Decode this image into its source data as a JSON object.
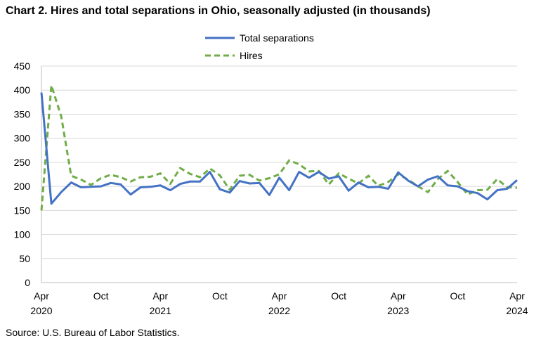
{
  "title": "Chart 2. Hires and total separations in Ohio, seasonally adjusted (in thousands)",
  "source": "Source: U.S. Bureau of Labor Statistics.",
  "chart_data": {
    "type": "line",
    "ylim": [
      0,
      450
    ],
    "yticks": [
      0,
      50,
      100,
      150,
      200,
      250,
      300,
      350,
      400,
      450
    ],
    "grid": "horizontal",
    "legend_position": "top",
    "x": [
      "2020-04",
      "2020-05",
      "2020-06",
      "2020-07",
      "2020-08",
      "2020-09",
      "2020-10",
      "2020-11",
      "2020-12",
      "2021-01",
      "2021-02",
      "2021-03",
      "2021-04",
      "2021-05",
      "2021-06",
      "2021-07",
      "2021-08",
      "2021-09",
      "2021-10",
      "2021-11",
      "2021-12",
      "2022-01",
      "2022-02",
      "2022-03",
      "2022-04",
      "2022-05",
      "2022-06",
      "2022-07",
      "2022-08",
      "2022-09",
      "2022-10",
      "2022-11",
      "2022-12",
      "2023-01",
      "2023-02",
      "2023-03",
      "2023-04",
      "2023-05",
      "2023-06",
      "2023-07",
      "2023-08",
      "2023-09",
      "2023-10",
      "2023-11",
      "2023-12",
      "2024-01",
      "2024-02",
      "2024-03",
      "2024-04"
    ],
    "xtick_labels": [
      {
        "month": "Apr",
        "year": "2020",
        "index": 0
      },
      {
        "month": "Oct",
        "year": "",
        "index": 6
      },
      {
        "month": "Apr",
        "year": "2021",
        "index": 12
      },
      {
        "month": "Oct",
        "year": "",
        "index": 18
      },
      {
        "month": "Apr",
        "year": "2022",
        "index": 24
      },
      {
        "month": "Oct",
        "year": "",
        "index": 30
      },
      {
        "month": "Apr",
        "year": "2023",
        "index": 36
      },
      {
        "month": "Oct",
        "year": "",
        "index": 42
      },
      {
        "month": "Apr",
        "year": "2024",
        "index": 48
      }
    ],
    "series": [
      {
        "name": "Total separations",
        "color": "#4472C4",
        "style": "solid",
        "values": [
          395,
          164,
          188,
          208,
          198,
          199,
          200,
          207,
          204,
          183,
          198,
          199,
          202,
          192,
          205,
          210,
          210,
          230,
          194,
          187,
          211,
          206,
          207,
          182,
          218,
          192,
          230,
          218,
          230,
          216,
          221,
          191,
          208,
          198,
          199,
          195,
          229,
          212,
          200,
          214,
          221,
          202,
          200,
          190,
          186,
          173,
          192,
          195,
          213
        ]
      },
      {
        "name": "Hires",
        "color": "#70AD47",
        "style": "dashed",
        "values": [
          150,
          410,
          345,
          222,
          214,
          203,
          217,
          224,
          219,
          210,
          219,
          220,
          227,
          205,
          238,
          226,
          219,
          237,
          223,
          193,
          222,
          224,
          212,
          217,
          225,
          254,
          246,
          231,
          232,
          204,
          227,
          216,
          206,
          222,
          201,
          209,
          225,
          214,
          200,
          188,
          215,
          232,
          209,
          183,
          192,
          193,
          215,
          198,
          197
        ]
      }
    ]
  }
}
